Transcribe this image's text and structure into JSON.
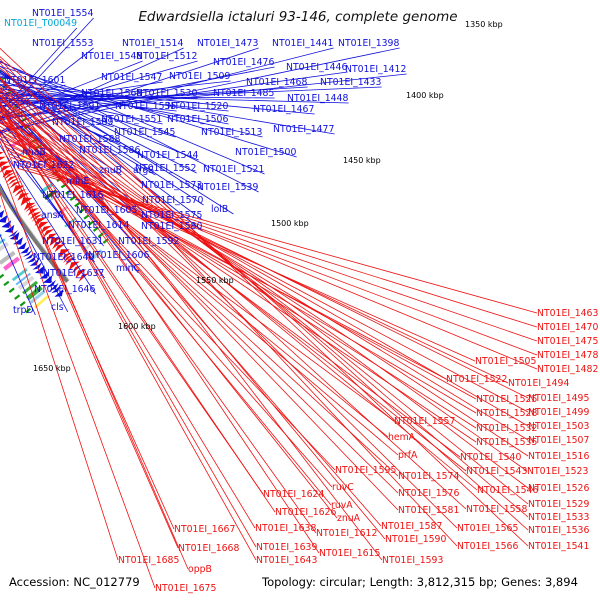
{
  "title": "Edwardsiella ictaluri 93-146, complete genome",
  "accession": "Accession: NC_012779",
  "topology": "Topology: circular; Length: 3,812,315 bp; Genes: 3,894",
  "colors": {
    "forward_strand": "#1010dd",
    "reverse_strand": "#ee1111",
    "tick_marks": "#119911",
    "backbone": "#777777",
    "cyan_label": "#00a8d8"
  },
  "scale_labels": [
    "1350 kbp",
    "1400 kbp",
    "1450 kbp",
    "1500 kbp",
    "1550 kbp",
    "1600 kbp",
    "1650 kbp"
  ],
  "forward_labels": [
    "NT01EI_1554",
    "NT01EI_T00049",
    "NT01EI_1553",
    "NT01EI_1514",
    "NT01EI_1473",
    "NT01EI_1441",
    "NT01EI_1398",
    "NT01EI_1548",
    "NT01EI_1512",
    "NT01EI_1476",
    "NT01EI_1446",
    "NT01EI_1412",
    "NT01EI_1601",
    "NT01EI_1547",
    "NT01EI_1509",
    "NT01EI_1468",
    "NT01EI_1433",
    "NT01EI_1568",
    "NT01EI_1530",
    "NT01EI_1485",
    "NT01EI_1448",
    "NT01EI_1591",
    "NT01EI_1555",
    "NT01EI_1520",
    "NT01EI_1467",
    "NT01EI_1589",
    "NT01EI_1551",
    "NT01EI_1506",
    "NT01EI_1477",
    "NT01EI_1545",
    "NT01EI_1513",
    "NT01EI_1588",
    "nhaB",
    "NT01EI_1586",
    "NT01EI_1544",
    "NT01EI_1500",
    "NT01EI_1622",
    "znuB",
    "argS",
    "NT01EI_1552",
    "NT01EI_1521",
    "minE",
    "NT01EI_1573",
    "NT01EI_1539",
    "NT01EI_1616",
    "NT01EI_1570",
    "lolB",
    "ansA",
    "NT01EI_1605",
    "NT01EI_1575",
    "NT01EI_1614",
    "NT01EI_1580",
    "NT01EI_1631",
    "NT01EI_1592",
    "NT01EI_1606",
    "NT01EI_1640",
    "minC",
    "NT01EI_1637",
    "NT01EI_1646",
    "trpD",
    "cls"
  ],
  "reverse_labels": [
    "NT01EI_1463",
    "NT01EI_1470",
    "NT01EI_1475",
    "NT01EI_1478",
    "NT01EI_1505",
    "NT01EI_1482",
    "NT01EI_1522",
    "NT01EI_1494",
    "NT01EI_1525",
    "NT01EI_1495",
    "NT01EI_1528",
    "NT01EI_1499",
    "NT01EI_1557",
    "NT01EI_1532",
    "NT01EI_1503",
    "NT01EI_1535",
    "NT01EI_1507",
    "hemA",
    "prfA",
    "NT01EI_1540",
    "NT01EI_1516",
    "NT01EI_1595",
    "NT01EI_1574",
    "NT01EI_1543",
    "NT01EI_1523",
    "ruvC",
    "NT01EI_1576",
    "NT01EI_1546",
    "NT01EI_1526",
    "NT01EI_1624",
    "ruvA",
    "NT01EI_1581",
    "NT01EI_1558",
    "NT01EI_1529",
    "NT01EI_1626",
    "znuA",
    "NT01EI_1587",
    "NT01EI_1565",
    "NT01EI_1533",
    "NT01EI_1667",
    "NT01EI_1638",
    "NT01EI_1612",
    "NT01EI_1590",
    "NT01EI_1536",
    "NT01EI_1668",
    "NT01EI_1639",
    "NT01EI_1566",
    "NT01EI_1541",
    "NT01EI_1685",
    "NT01EI_1643",
    "NT01EI_1615",
    "NT01EI_1593",
    "oppB",
    "NT01EI_1675"
  ]
}
